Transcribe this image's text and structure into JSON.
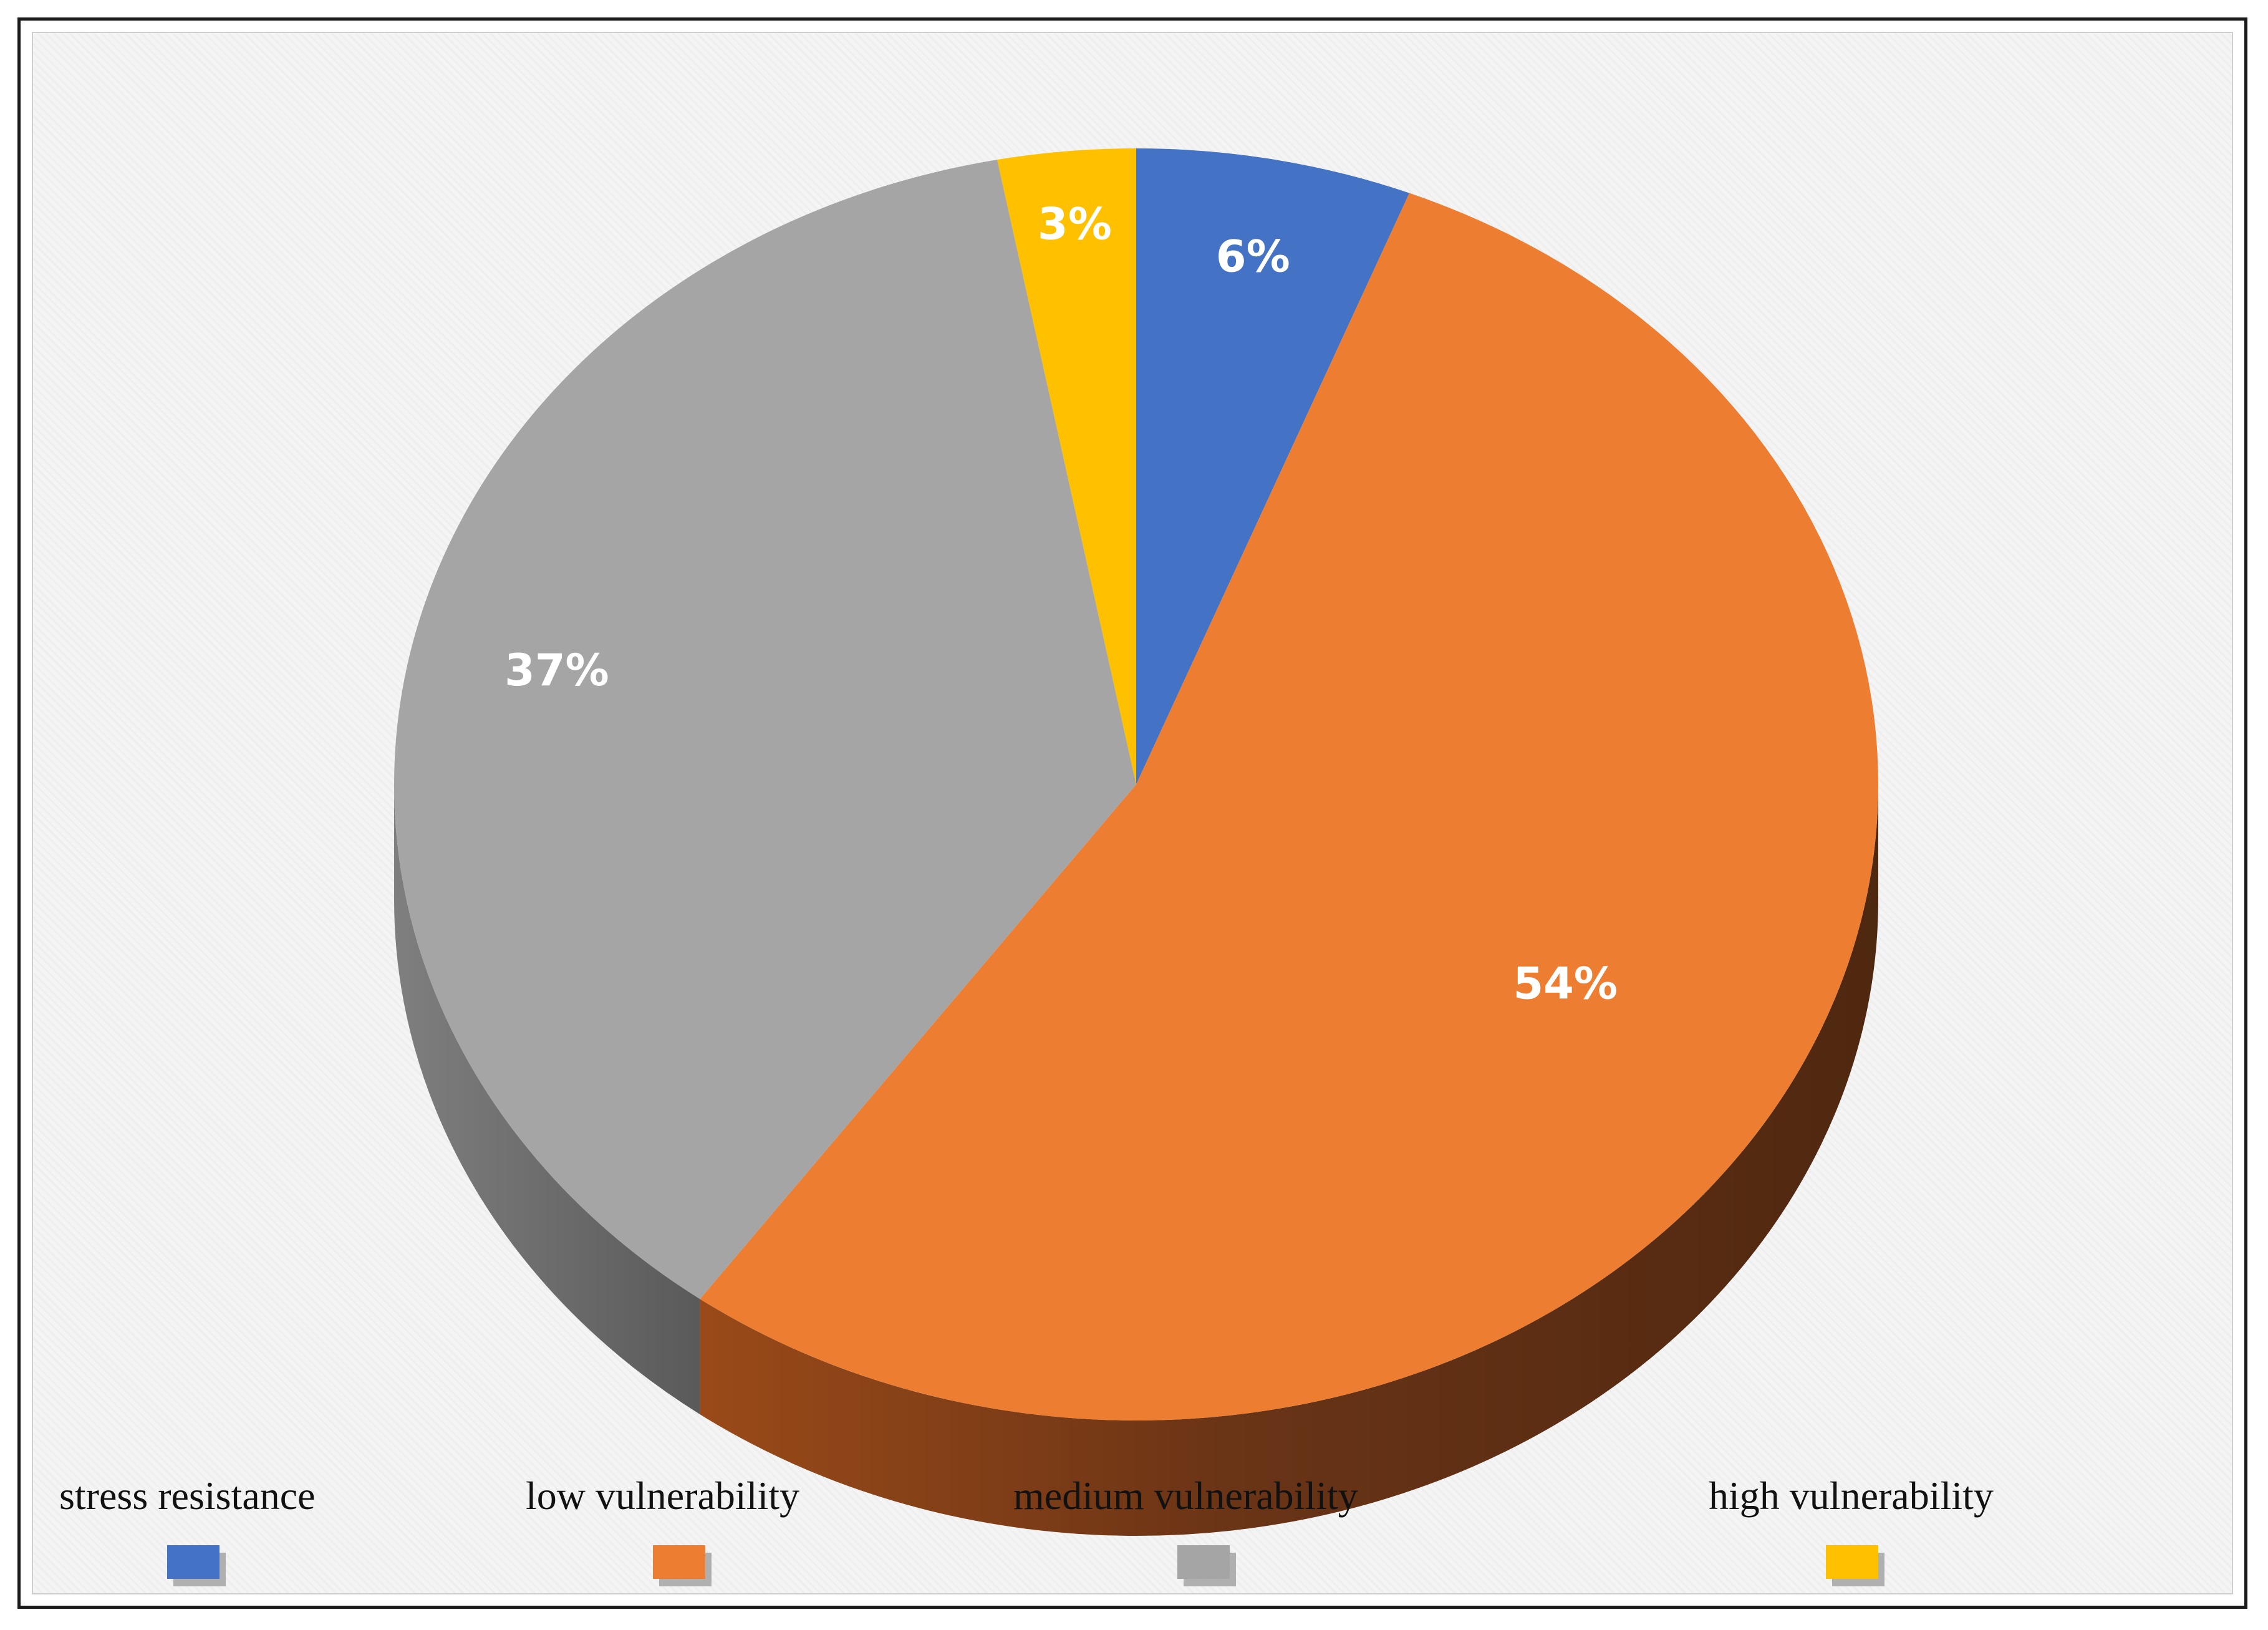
{
  "chart_data": {
    "type": "pie",
    "title": "",
    "categories": [
      "stress resistance",
      "low vulnerability",
      "medium vulnerability",
      "high vulnerability"
    ],
    "values": [
      6,
      54,
      37,
      3
    ],
    "labels": [
      "6%",
      "54%",
      "37%",
      "3%"
    ],
    "colors": [
      "#4472c4",
      "#ed7d31",
      "#a5a5a5",
      "#ffc000"
    ],
    "three_d": true,
    "legend_position": "bottom"
  }
}
